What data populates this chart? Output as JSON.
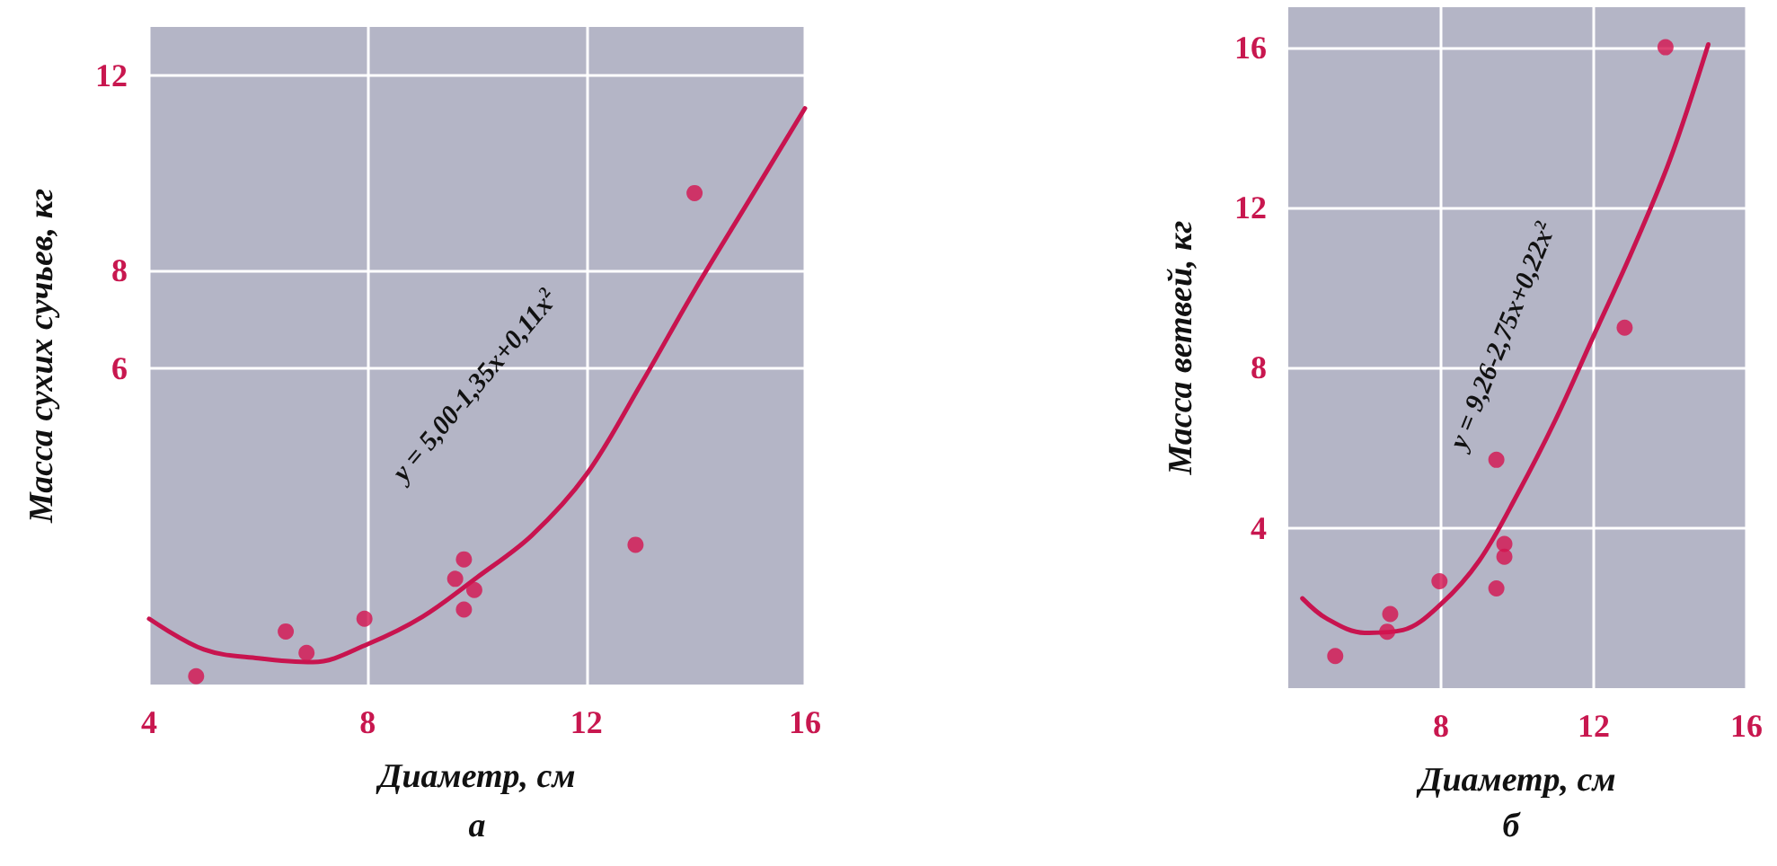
{
  "chart_data": [
    {
      "type": "scatter",
      "title": "а",
      "xlabel": "Диаметр, см",
      "ylabel": "Масса сухих сучьев, кг",
      "xlim": [
        4,
        16
      ],
      "xticks": [
        4,
        8,
        12,
        16
      ],
      "ylim": [
        -0.5,
        13
      ],
      "yticks": [
        6,
        8,
        12
      ],
      "grid": true,
      "marker": "circle",
      "annotations": [
        "y = 5,00-1,35x+0,11x$^{2}$"
      ],
      "series": [
        {
          "type": "scatter",
          "color": "#d4134f",
          "x": [
            4.86,
            6.5,
            6.88,
            7.94,
            9.6,
            9.76,
            9.95,
            9.76,
            12.9,
            13.98
          ],
          "values": [
            -0.33,
            0.59,
            0.15,
            0.85,
            1.67,
            2.07,
            1.44,
            1.04,
            2.37,
            9.59
          ]
        },
        {
          "type": "line",
          "marker": "none",
          "line_style": "solid",
          "color": "#c8144f",
          "x": [
            4,
            5,
            6,
            7,
            8,
            9,
            10,
            11,
            12,
            13,
            14,
            15,
            16
          ],
          "values": [
            0.85,
            0.22,
            0.04,
            -0.04,
            0.33,
            0.89,
            1.7,
            2.56,
            3.81,
            5.67,
            7.63,
            9.48,
            11.33
          ]
        }
      ]
    },
    {
      "type": "scatter",
      "title": "б",
      "xlabel": "Диаметр, см",
      "ylabel": "Масса ветвей, кг",
      "xlim": [
        4,
        16
      ],
      "xticks": [
        8,
        12,
        16
      ],
      "ylim": [
        0,
        17
      ],
      "yticks": [
        4,
        8,
        12,
        16
      ],
      "grid": true,
      "marker": "circle",
      "annotations": [
        "y = 9,26-2,75x+0,22x$^{2}$"
      ],
      "series": [
        {
          "type": "scatter",
          "color": "#d4134f",
          "x": [
            5.23,
            6.67,
            6.59,
            7.96,
            9.45,
            9.45,
            9.66,
            9.66,
            12.81,
            13.88
          ],
          "values": [
            0.8,
            1.85,
            1.41,
            2.67,
            5.7,
            2.49,
            3.6,
            3.28,
            9.0,
            16.0
          ]
        },
        {
          "type": "line",
          "marker": "none",
          "line_style": "solid",
          "color": "#c8144f",
          "x": [
            4.37,
            5,
            6,
            7,
            8,
            9,
            10,
            11,
            12,
            13,
            14,
            15
          ],
          "values": [
            2.24,
            1.74,
            1.38,
            1.45,
            2.1,
            3.18,
            4.84,
            6.7,
            8.8,
            10.9,
            13.2,
            16.07
          ]
        }
      ]
    }
  ]
}
